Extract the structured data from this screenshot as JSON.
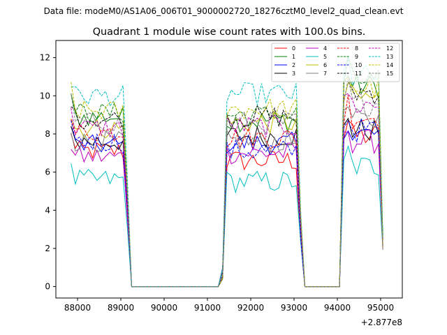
{
  "header": {
    "data_file_label": "Data file: modeM0/AS1A06_006T01_9000002720_18276cztM0_level2_quad_clean.evt"
  },
  "chart_data": {
    "type": "line",
    "title": "Quadrant 1 module wise count rates with 100.0s bins.",
    "xlabel": "",
    "ylabel": "",
    "x_offset_label": "+2.877e8",
    "xlim": [
      87500,
      95500
    ],
    "ylim": [
      -0.6,
      12.9
    ],
    "x_ticks": [
      88000,
      89000,
      90000,
      91000,
      92000,
      93000,
      94000,
      95000
    ],
    "y_ticks": [
      0,
      2,
      4,
      6,
      8,
      10,
      12
    ],
    "legend_position": "top-right",
    "segments": [
      {
        "x_start": 87850,
        "x_end": 89050,
        "bins": 13
      },
      {
        "x_start": 91450,
        "x_end": 93050,
        "bins": 17
      },
      {
        "x_start": 94150,
        "x_end": 94950,
        "bins": 9
      }
    ],
    "transition_x": [
      [
        89150,
        89250
      ],
      [
        91250,
        91350
      ],
      [
        93150,
        93250
      ],
      [
        94050,
        95050
      ]
    ],
    "gap": {
      "x_start": 89250,
      "x_end": 91250,
      "value": 0
    },
    "series": [
      {
        "name": "0",
        "color": "#ff0000",
        "dashed": false,
        "segment_means": [
          7.1,
          6.6,
          7.9
        ]
      },
      {
        "name": "1",
        "color": "#008000",
        "dashed": false,
        "segment_means": [
          8.9,
          8.7,
          10.5
        ]
      },
      {
        "name": "2",
        "color": "#0000ff",
        "dashed": false,
        "segment_means": [
          7.4,
          7.5,
          8.0
        ]
      },
      {
        "name": "3",
        "color": "#000000",
        "dashed": false,
        "segment_means": [
          7.6,
          7.9,
          8.2
        ]
      },
      {
        "name": "4",
        "color": "#bf00bf",
        "dashed": false,
        "segment_means": [
          6.8,
          7.0,
          7.6
        ]
      },
      {
        "name": "5",
        "color": "#00bfbf",
        "dashed": false,
        "segment_means": [
          5.6,
          5.5,
          6.3
        ]
      },
      {
        "name": "6",
        "color": "#bfbf00",
        "dashed": false,
        "segment_means": [
          8.3,
          8.6,
          9.9
        ]
      },
      {
        "name": "7",
        "color": "#808080",
        "dashed": false,
        "segment_means": [
          7.6,
          7.6,
          8.7
        ]
      },
      {
        "name": "8",
        "color": "#ff0000",
        "dashed": true,
        "segment_means": [
          8.1,
          7.8,
          8.9
        ]
      },
      {
        "name": "9",
        "color": "#008000",
        "dashed": true,
        "segment_means": [
          9.1,
          9.0,
          10.8
        ]
      },
      {
        "name": "10",
        "color": "#0000ff",
        "dashed": true,
        "segment_means": [
          7.6,
          7.1,
          8.2
        ]
      },
      {
        "name": "11",
        "color": "#000000",
        "dashed": true,
        "segment_means": [
          8.8,
          8.9,
          10.2
        ]
      },
      {
        "name": "12",
        "color": "#bf00bf",
        "dashed": true,
        "segment_means": [
          8.3,
          8.4,
          9.5
        ]
      },
      {
        "name": "13",
        "color": "#00bfbf",
        "dashed": true,
        "segment_means": [
          10.0,
          10.1,
          11.0
        ]
      },
      {
        "name": "14",
        "color": "#bfbf00",
        "dashed": true,
        "segment_means": [
          9.2,
          9.3,
          10.4
        ]
      },
      {
        "name": "15",
        "color": "#808080",
        "dashed": true,
        "segment_means": [
          8.6,
          8.6,
          9.6
        ]
      }
    ]
  }
}
